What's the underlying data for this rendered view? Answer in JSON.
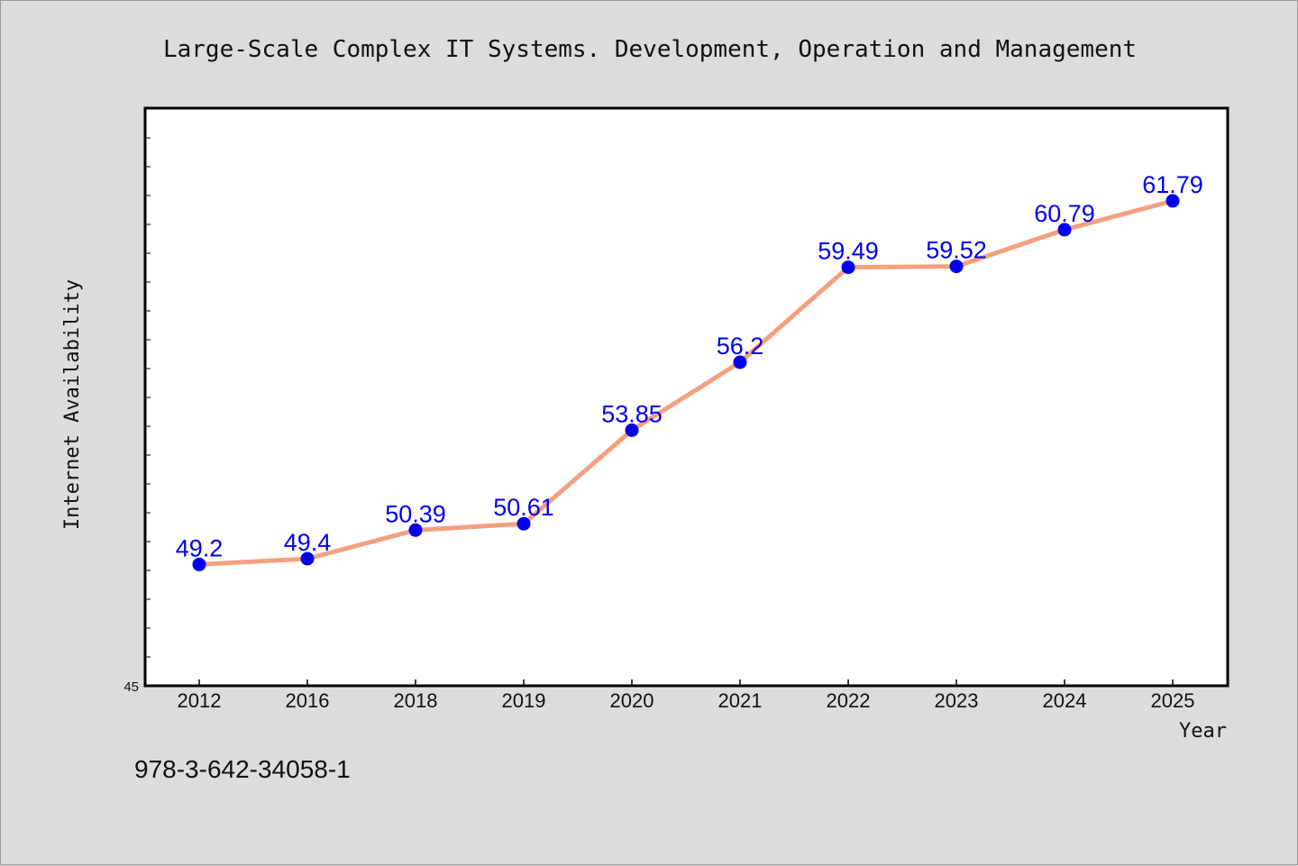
{
  "chart_data": {
    "type": "line",
    "title": "Large-Scale Complex IT Systems. Development, Operation and Management",
    "xlabel": "Year",
    "ylabel": "Internet Availability",
    "categories": [
      "2012",
      "2016",
      "2018",
      "2019",
      "2020",
      "2021",
      "2022",
      "2023",
      "2024",
      "2025"
    ],
    "series": [
      {
        "values": [
          49.2,
          49.4,
          50.39,
          50.61,
          53.85,
          56.2,
          59.49,
          59.52,
          60.79,
          61.79
        ]
      }
    ],
    "data_labels": [
      "49.2",
      "49.4",
      "50.39",
      "50.61",
      "53.85",
      "56.2",
      "59.49",
      "59.52",
      "60.79",
      "61.79"
    ],
    "ylim": [
      45,
      65
    ],
    "y_tick_labels": [
      "45"
    ],
    "grid": false,
    "colors": {
      "line": "#f4a07e",
      "marker": "#0000ee",
      "data_label": "#0000ee",
      "background": "#dcdcdc",
      "plot_background": "#ffffff"
    }
  },
  "footer_text": "978-3-642-34058-1"
}
